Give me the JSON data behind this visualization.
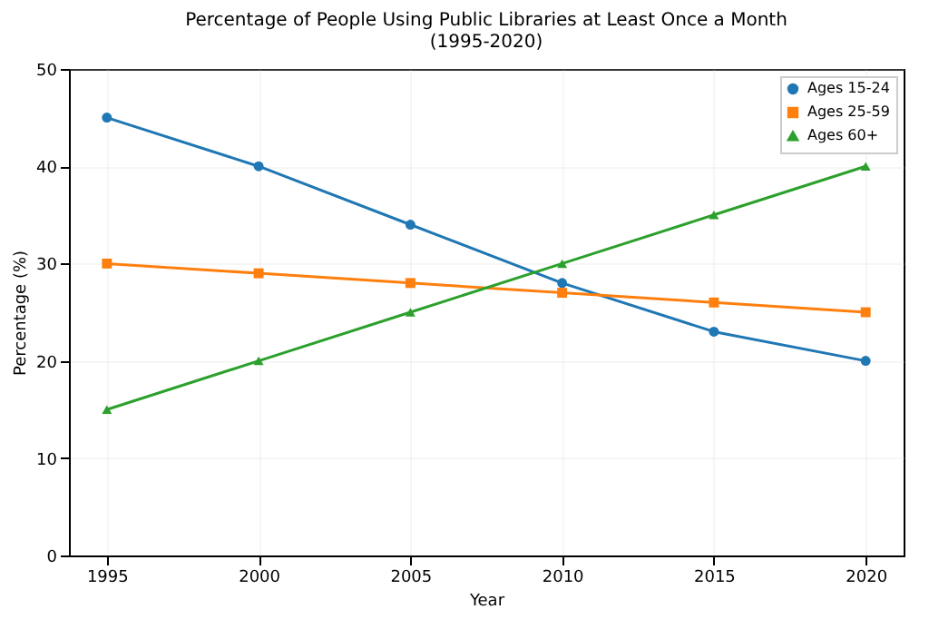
{
  "chart_data": {
    "type": "line",
    "title": "Percentage of People Using Public Libraries at Least Once a Month\n(1995-2020)",
    "xlabel": "Year",
    "ylabel": "Percentage (%)",
    "x": [
      1995,
      2000,
      2005,
      2010,
      2015,
      2020
    ],
    "series": [
      {
        "name": "Ages 15-24",
        "color": "#1f77b4",
        "marker": "circle",
        "values": [
          45,
          40,
          34,
          28,
          23,
          20
        ]
      },
      {
        "name": "Ages 25-59",
        "color": "#ff7f0e",
        "marker": "square",
        "values": [
          30,
          29,
          28,
          27,
          26,
          25
        ]
      },
      {
        "name": "Ages 60+",
        "color": "#2ca02c",
        "marker": "triangle",
        "values": [
          15,
          20,
          25,
          30,
          35,
          40
        ]
      }
    ],
    "xlim": [
      1993.75,
      2021.25
    ],
    "xticks": [
      1995,
      2000,
      2005,
      2010,
      2015,
      2020
    ],
    "ylim": [
      0,
      50
    ],
    "yticks": [
      0,
      10,
      20,
      30,
      40,
      50
    ],
    "grid": true,
    "legend": "top right",
    "line_style": "solid"
  }
}
